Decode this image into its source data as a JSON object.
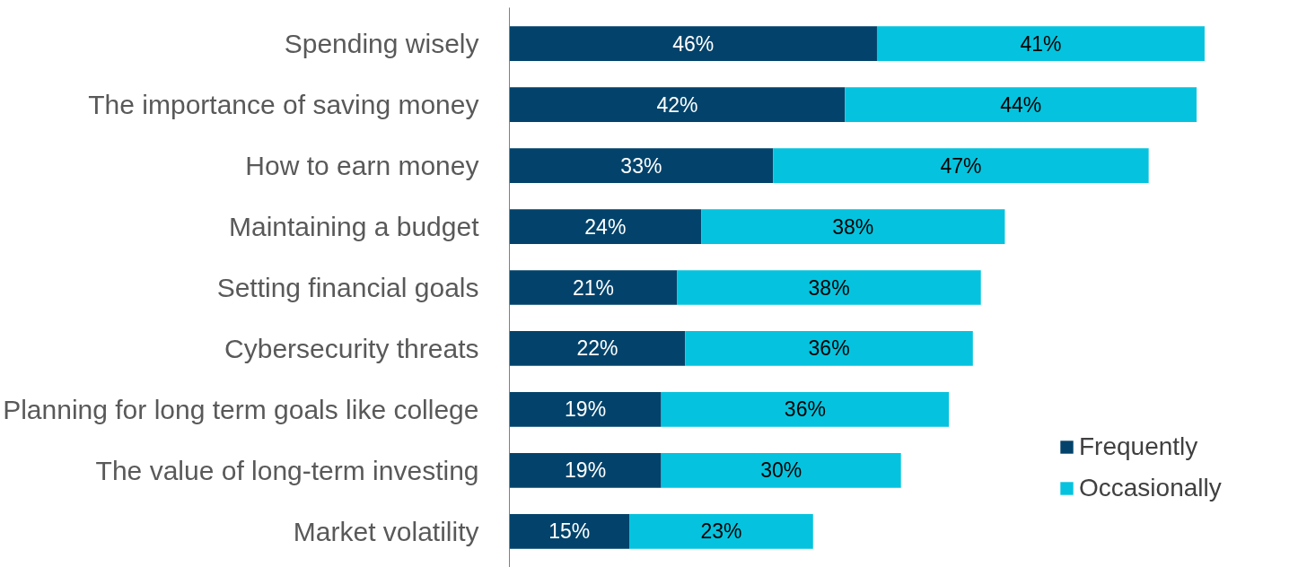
{
  "chart_data": {
    "type": "bar",
    "orientation": "horizontal",
    "stacked": true,
    "data_labels": true,
    "legend": "bottom right",
    "grid": false,
    "tick_labels": "y",
    "categories": [
      "Spending wisely",
      "The importance of saving money",
      "How to earn money",
      "Maintaining a budget",
      "Setting financial goals",
      "Cybersecurity threats",
      "Planning for long term goals like college",
      "The value of long-term investing",
      "Market volatility"
    ],
    "series": [
      {
        "name": "Frequently",
        "color": "#03436b",
        "values": [
          46,
          42,
          33,
          24,
          21,
          22,
          19,
          19,
          15
        ],
        "value_labels": [
          "46%",
          "42%",
          "33%",
          "24%",
          "21%",
          "22%",
          "19%",
          "19%",
          "15%"
        ]
      },
      {
        "name": "Occasionally",
        "color": "#05c3de",
        "values": [
          41,
          44,
          47,
          38,
          38,
          36,
          36,
          30,
          23
        ],
        "value_labels": [
          "41%",
          "44%",
          "47%",
          "38%",
          "38%",
          "36%",
          "36%",
          "30%",
          "23%"
        ]
      }
    ]
  }
}
